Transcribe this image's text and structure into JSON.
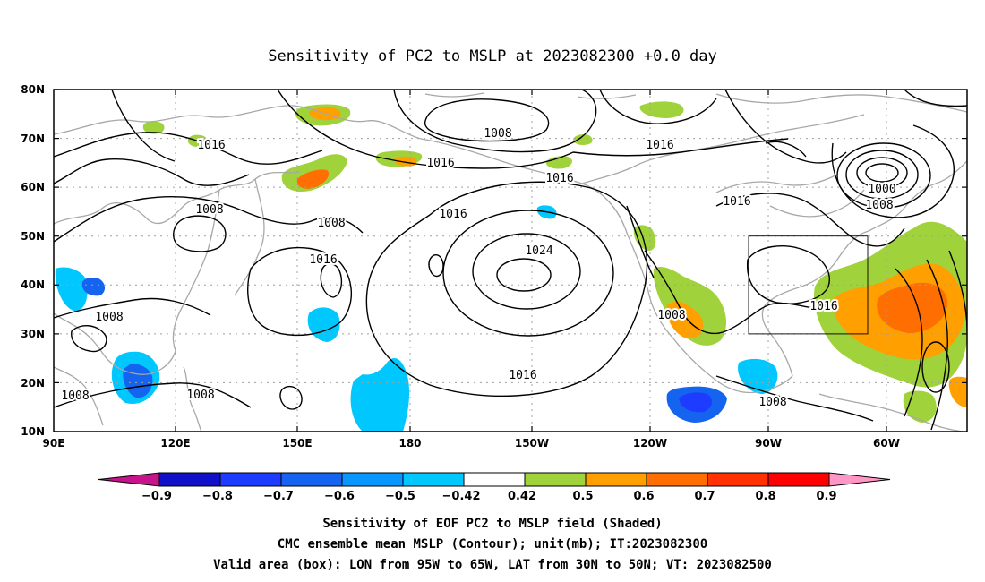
{
  "title": "Sensitivity of PC2 to MSLP at 2023082300 +0.0 day",
  "lon_ticks": [
    "90E",
    "120E",
    "150E",
    "180",
    "150W",
    "120W",
    "90W",
    "60W"
  ],
  "lat_ticks": [
    "80N",
    "70N",
    "60N",
    "50N",
    "40N",
    "30N",
    "20N",
    "10N"
  ],
  "colorbar": {
    "labels": [
      "−0.9",
      "−0.8",
      "−0.7",
      "−0.6",
      "−0.5",
      "−0.42",
      "0.42",
      "0.5",
      "0.6",
      "0.7",
      "0.8",
      "0.9"
    ],
    "colors": [
      "#1010c8",
      "#1e3cff",
      "#1464f0",
      "#0a96ff",
      "#00c8ff",
      "#ffffff",
      "#a0d23c",
      "#ffa000",
      "#ff6e00",
      "#ff3200",
      "#ff0000"
    ],
    "under_color": "#c8148c",
    "over_color": "#ff96c8"
  },
  "contour_labels": [
    "1016",
    "1008",
    "1016",
    "1016",
    "1016",
    "1008",
    "1016",
    "1016",
    "1000",
    "1008",
    "1008",
    "1016",
    "1024",
    "1008",
    "1016",
    "1008",
    "1008",
    "1016",
    "1008"
  ],
  "captions": {
    "line1": "Sensitivity of EOF PC2 to MSLP field (Shaded)",
    "line2": "CMC ensemble mean MSLP (Contour); unit(mb); IT:2023082300",
    "line3": "Valid area (box): LON from 95W to 65W, LAT from 30N to 50N; VT: 2023082500"
  },
  "colors": {
    "contour": "#000000",
    "coast": "#a8a8a8",
    "grid": "#a0a0a0"
  }
}
